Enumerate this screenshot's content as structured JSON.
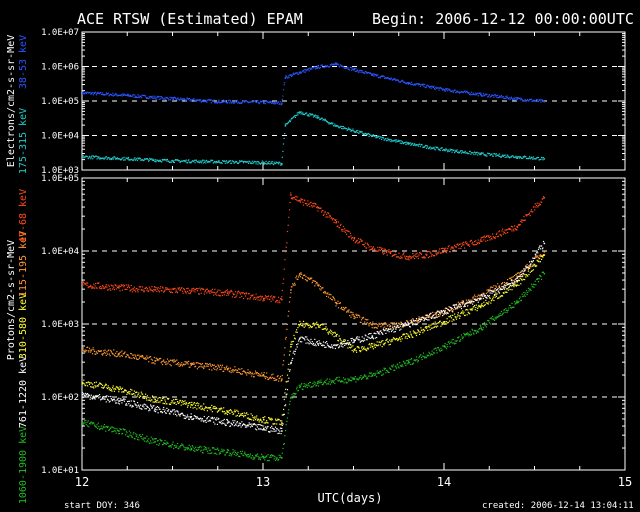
{
  "header": {
    "title": "ACE RTSW (Estimated) EPAM",
    "begin": "Begin: 2006-12-12 00:00:00UTC"
  },
  "footer": {
    "start_doy": "start DOY:  346",
    "created": "created:  2006-12-14 13:04:11"
  },
  "colors": {
    "background": "#000000",
    "axes": "#ffffff",
    "electrons_38_53": "#2a55ff",
    "electrons_175_315": "#22cccc",
    "protons_47_68": "#ff4a1a",
    "protons_115_195": "#ff9a33",
    "protons_310_580": "#ffff33",
    "protons_761_1220": "#ffffff",
    "protons_1060_1900": "#22bb22"
  },
  "chart_data": [
    {
      "type": "scatter",
      "panel": "electrons",
      "ylabel": "Electrons/cm2-s-sr-MeV",
      "ylabel_channels": [
        "175-315 keV",
        "38-53 keV"
      ],
      "ylim": [
        1000,
        10000000
      ],
      "log_y": true,
      "y_ticks": [
        "1.0E+03",
        "1.0E+04",
        "1.0E+05",
        "1.0E+06",
        "1.0E+07"
      ],
      "dashed_gridlines": [
        10000,
        100000,
        1000000
      ],
      "xlim": [
        12,
        15
      ],
      "series": [
        {
          "name": "38-53 keV",
          "color": "#2a55ff",
          "x": [
            12.0,
            12.25,
            12.5,
            12.75,
            13.0,
            13.1,
            13.12,
            13.2,
            13.3,
            13.4,
            13.5,
            13.6,
            13.8,
            14.0,
            14.2,
            14.4,
            14.55
          ],
          "y": [
            180000,
            150000,
            120000,
            100000,
            95000,
            90000,
            500000,
            700000,
            1000000,
            1200000,
            850000,
            600000,
            350000,
            220000,
            160000,
            120000,
            100000
          ]
        },
        {
          "name": "175-315 keV",
          "color": "#22cccc",
          "x": [
            12.0,
            12.25,
            12.5,
            12.75,
            13.0,
            13.1,
            13.12,
            13.2,
            13.3,
            13.4,
            13.6,
            13.8,
            14.0,
            14.2,
            14.4,
            14.55
          ],
          "y": [
            2500,
            2200,
            1900,
            1800,
            1700,
            1600,
            20000,
            50000,
            35000,
            20000,
            10000,
            6000,
            4000,
            3000,
            2500,
            2200
          ]
        }
      ]
    },
    {
      "type": "scatter",
      "panel": "protons",
      "ylabel": "Protons/cm2-s-sr-MeV",
      "ylabel_channels": [
        "1060-1900 keV",
        "761-1220 keV",
        "310-580 keV",
        "115-195 keV",
        "47-68 keV"
      ],
      "ylim": [
        10,
        100000
      ],
      "log_y": true,
      "y_ticks": [
        "1.0E+01",
        "1.0E+02",
        "1.0E+03",
        "1.0E+04",
        "1.0E+05"
      ],
      "dashed_gridlines": [
        100,
        1000,
        10000
      ],
      "xlim": [
        12,
        15
      ],
      "x_ticks": [
        "12",
        "13",
        "14",
        "15"
      ],
      "xlabel": "UTC(days)",
      "series": [
        {
          "name": "47-68 keV",
          "color": "#ff4a1a",
          "x": [
            12.0,
            12.2,
            12.4,
            12.6,
            12.8,
            13.0,
            13.1,
            13.15,
            13.2,
            13.3,
            13.4,
            13.5,
            13.6,
            13.7,
            13.8,
            13.9,
            14.0,
            14.2,
            14.4,
            14.55
          ],
          "y": [
            3500,
            3200,
            3000,
            2900,
            2700,
            2300,
            2200,
            60000,
            50000,
            40000,
            25000,
            15000,
            11000,
            9500,
            8500,
            9000,
            10500,
            14000,
            22000,
            55000
          ]
        },
        {
          "name": "115-195 keV",
          "color": "#ff9a33",
          "x": [
            12.0,
            12.2,
            12.4,
            12.6,
            12.8,
            13.0,
            13.1,
            13.15,
            13.2,
            13.3,
            13.4,
            13.5,
            13.6,
            13.7,
            13.8,
            14.0,
            14.2,
            14.4,
            14.55
          ],
          "y": [
            450,
            400,
            320,
            280,
            250,
            200,
            180,
            3000,
            5000,
            3500,
            2000,
            1300,
            1000,
            950,
            1050,
            1500,
            2500,
            4500,
            10000
          ]
        },
        {
          "name": "310-580 keV",
          "color": "#ffff33",
          "x": [
            12.0,
            12.2,
            12.4,
            12.6,
            12.8,
            13.0,
            13.1,
            13.15,
            13.2,
            13.3,
            13.4,
            13.5,
            13.6,
            13.8,
            14.0,
            14.2,
            14.4,
            14.55
          ],
          "y": [
            160,
            130,
            95,
            80,
            65,
            50,
            45,
            500,
            1000,
            1000,
            700,
            450,
            500,
            700,
            1100,
            1800,
            3500,
            9000
          ]
        },
        {
          "name": "761-1220 keV",
          "color": "#ffffff",
          "x": [
            12.0,
            12.2,
            12.4,
            12.6,
            12.8,
            13.0,
            13.1,
            13.15,
            13.2,
            13.3,
            13.4,
            13.5,
            13.6,
            13.8,
            14.0,
            14.2,
            14.4,
            14.55
          ],
          "y": [
            110,
            90,
            70,
            55,
            45,
            38,
            35,
            300,
            650,
            550,
            520,
            600,
            700,
            1000,
            1500,
            2300,
            4000,
            13000
          ]
        },
        {
          "name": "1060-1900 keV",
          "color": "#22bb22",
          "x": [
            12.0,
            12.2,
            12.4,
            12.6,
            12.8,
            13.0,
            13.1,
            13.15,
            13.2,
            13.3,
            13.5,
            13.6,
            13.8,
            14.0,
            14.2,
            14.4,
            14.55
          ],
          "y": [
            45,
            35,
            25,
            20,
            18,
            15,
            15,
            100,
            140,
            160,
            180,
            200,
            300,
            500,
            900,
            2000,
            5000
          ]
        }
      ]
    }
  ]
}
